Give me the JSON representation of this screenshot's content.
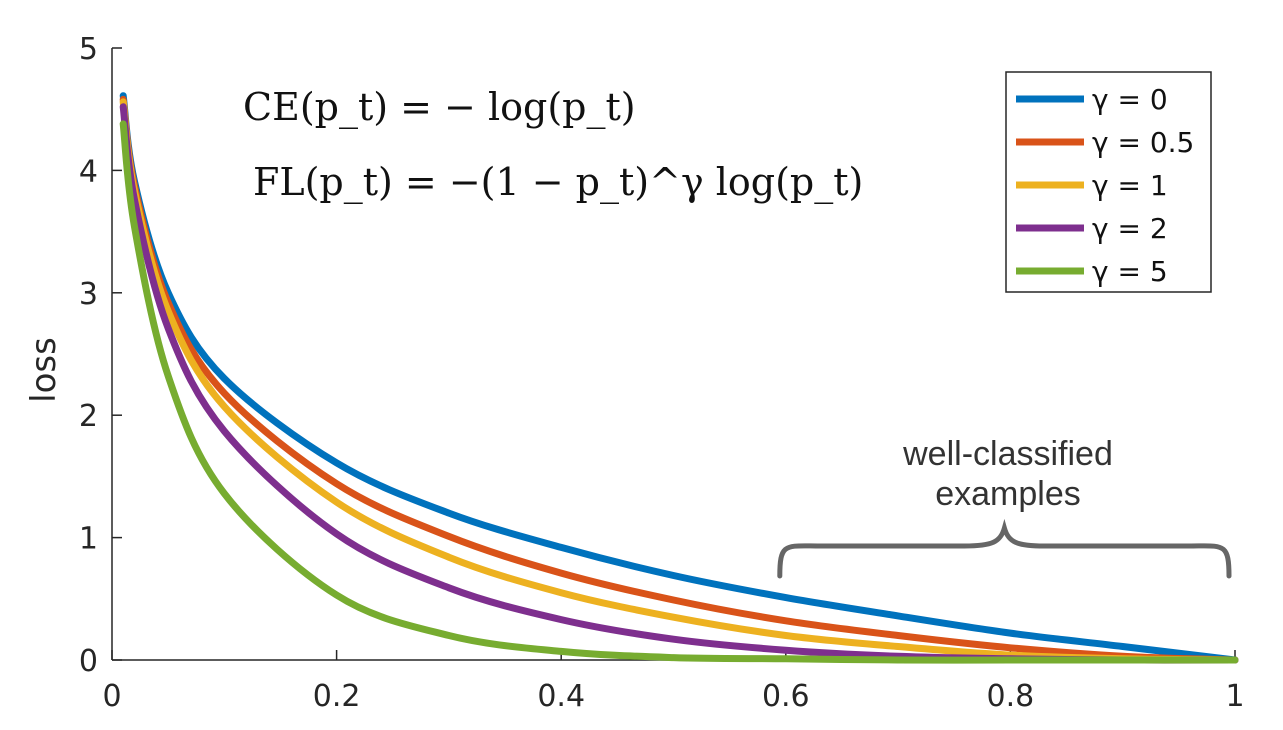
{
  "chart_data": {
    "type": "line",
    "title": "",
    "xlabel": "",
    "ylabel": "loss",
    "xlim": [
      0,
      1
    ],
    "ylim": [
      0,
      5
    ],
    "xticks": [
      0,
      0.2,
      0.4,
      0.6,
      0.8,
      1
    ],
    "xtick_labels": [
      "0",
      "0.2",
      "0.4",
      "0.6",
      "0.8",
      "1"
    ],
    "yticks": [
      0,
      1,
      2,
      3,
      4,
      5
    ],
    "ytick_labels": [
      "0",
      "1",
      "2",
      "3",
      "4",
      "5"
    ],
    "grid": false,
    "legend_position": "top-right",
    "formula": {
      "ce": "CE(p_t) = − log(p_t)",
      "fl": "FL(p_t) = −(1 − p_t)^γ log(p_t)"
    },
    "annotation": {
      "line1": "well-classified",
      "line2": "examples",
      "x_range": [
        0.6,
        1.0
      ]
    },
    "x": [
      0.01,
      0.02,
      0.05,
      0.1,
      0.2,
      0.3,
      0.4,
      0.5,
      0.6,
      0.7,
      0.8,
      0.9,
      1.0
    ],
    "series": [
      {
        "name": "γ = 0",
        "color": "#0072BD",
        "values": [
          4.61,
          3.91,
          3.0,
          2.3,
          1.61,
          1.2,
          0.92,
          0.69,
          0.51,
          0.36,
          0.22,
          0.11,
          0.0
        ]
      },
      {
        "name": "γ = 0.5",
        "color": "#D95319",
        "values": [
          4.58,
          3.87,
          2.92,
          2.18,
          1.44,
          1.01,
          0.71,
          0.49,
          0.32,
          0.2,
          0.1,
          0.03,
          0.0
        ]
      },
      {
        "name": "γ = 1",
        "color": "#EDB120",
        "values": [
          4.56,
          3.83,
          2.85,
          2.07,
          1.29,
          0.84,
          0.55,
          0.35,
          0.2,
          0.11,
          0.04,
          0.01,
          0.0
        ]
      },
      {
        "name": "γ = 2",
        "color": "#7E2F8E",
        "values": [
          4.52,
          3.76,
          2.71,
          1.87,
          1.03,
          0.59,
          0.33,
          0.17,
          0.08,
          0.03,
          0.01,
          0.0,
          0.0
        ]
      },
      {
        "name": "γ = 5",
        "color": "#77AC30",
        "values": [
          4.38,
          3.54,
          2.32,
          1.36,
          0.53,
          0.2,
          0.07,
          0.02,
          0.01,
          0.0,
          0.0,
          0.0,
          0.0
        ]
      }
    ]
  }
}
